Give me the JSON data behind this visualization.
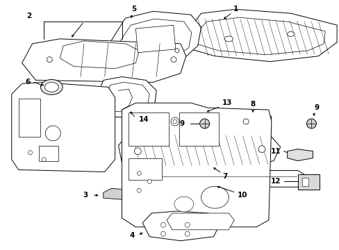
{
  "background_color": "#ffffff",
  "line_color": "#000000",
  "figure_width": 4.89,
  "figure_height": 3.6,
  "dpi": 100,
  "label_fontsize": 7.5,
  "lw": 0.7
}
